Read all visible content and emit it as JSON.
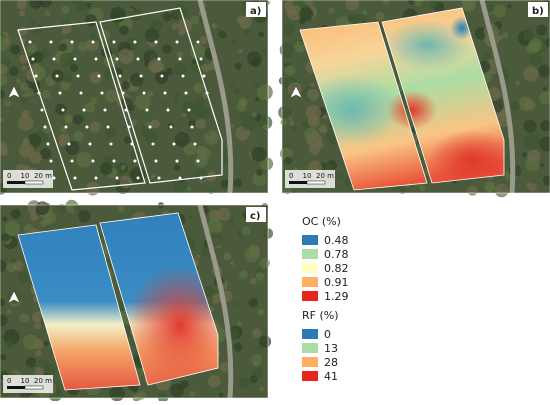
{
  "panels": [
    {
      "label": "a)",
      "scale": [
        "0",
        "10",
        "20 m"
      ]
    },
    {
      "label": "b)",
      "scale": [
        "0",
        "10",
        "20 m"
      ]
    },
    {
      "label": "c)",
      "scale": [
        "0",
        "10",
        "20 m"
      ]
    }
  ],
  "legends": [
    {
      "title": "OC (%)",
      "items": [
        "0.48",
        "0.78",
        "0.82",
        "0.91",
        "1.29"
      ]
    },
    {
      "title": "RF (%)",
      "items": [
        "0",
        "13",
        "28",
        "41"
      ]
    }
  ]
}
